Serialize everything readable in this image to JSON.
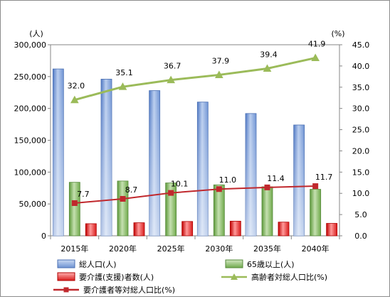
{
  "chart_data": {
    "type": "bar",
    "categories": [
      "2015年",
      "2020年",
      "2025年",
      "2030年",
      "2035年",
      "2040年"
    ],
    "series": [
      {
        "name": "総人口(人)",
        "type": "bar",
        "axis": "left",
        "color": "#6f96d6",
        "values": [
          262000,
          246000,
          228000,
          210000,
          192000,
          174000
        ]
      },
      {
        "name": "65歳以上(人)",
        "type": "bar",
        "axis": "left",
        "color": "#77b152",
        "values": [
          84000,
          86000,
          83000,
          80000,
          77000,
          73000
        ]
      },
      {
        "name": "要介護(支援)者数(人)",
        "type": "bar",
        "axis": "left",
        "color": "#e02020",
        "values": [
          19000,
          20500,
          22500,
          23000,
          21500,
          19500
        ]
      },
      {
        "name": "高齢者対総人口比(%)",
        "type": "line",
        "axis": "right",
        "color": "#9bbb59",
        "marker": "triangle",
        "values": [
          32.0,
          35.1,
          36.7,
          37.9,
          39.4,
          41.9
        ],
        "labels": [
          "32.0",
          "35.1",
          "36.7",
          "37.9",
          "39.4",
          "41.9"
        ]
      },
      {
        "name": "要介護者等対総人口比(%)",
        "type": "line",
        "axis": "right",
        "color": "#c0282d",
        "marker": "square",
        "values": [
          7.7,
          8.7,
          10.1,
          11.0,
          11.4,
          11.7
        ],
        "labels": [
          "7.7",
          "8.7",
          "10.1",
          "11.0",
          "11.4",
          "11.7"
        ]
      }
    ],
    "left_axis": {
      "unit": "(人)",
      "min": 0,
      "max": 300000,
      "step": 50000,
      "ticks": [
        "0",
        "50,000",
        "100,000",
        "150,000",
        "200,000",
        "250,000",
        "300,000"
      ]
    },
    "right_axis": {
      "unit": "(%)",
      "min": 0,
      "max": 45,
      "step": 5,
      "ticks": [
        "0.0",
        "5.0",
        "10.0",
        "15.0",
        "20.0",
        "25.0",
        "30.0",
        "35.0",
        "40.0",
        "45.0"
      ]
    },
    "grid": false,
    "legend_position": "bottom"
  }
}
